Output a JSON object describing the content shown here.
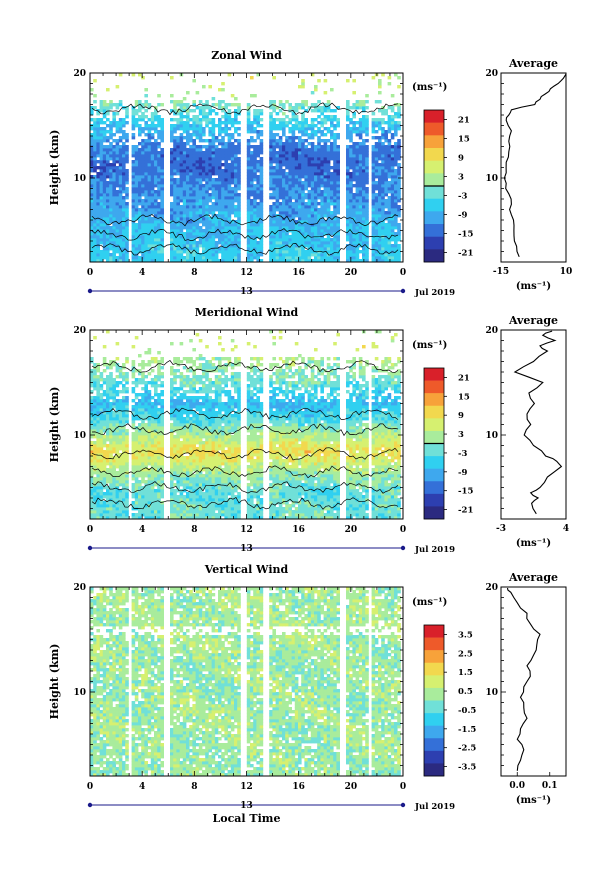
{
  "figure": {
    "date_label": "Jul 2019",
    "date_day": "13",
    "x_title": "Local Time",
    "colorbar_unit": "(ms⁻¹)"
  },
  "colors": {
    "accent_axis": "#1a1a8a",
    "colormap": [
      "#2b2a80",
      "#2d3fb0",
      "#3470d8",
      "#3ea8ee",
      "#30d0f0",
      "#70e0d8",
      "#a9ec9c",
      "#d6f070",
      "#f2d84e",
      "#f7a23a",
      "#ee5a2a",
      "#d9202a"
    ]
  },
  "chart_data": [
    {
      "type": "heatmap",
      "title": "Zonal Wind",
      "ylabel": "Height (km)",
      "xlabel": "",
      "x_ticks": [
        "0",
        "4",
        "8",
        "12",
        "16",
        "20",
        "0"
      ],
      "xlim": [
        0,
        24
      ],
      "y_ticks": [
        "20",
        "10"
      ],
      "ylim": [
        2,
        20
      ],
      "colorbar": {
        "unit": "(ms⁻¹)",
        "ticks": [
          "21",
          "15",
          "9",
          "3",
          "-3",
          "-9",
          "-15",
          "-21"
        ],
        "range": [
          -24,
          24
        ]
      },
      "gaps_hours": [
        3.1,
        5.9,
        11.9,
        13.6,
        19.6,
        21.6
      ],
      "profile_levels_km": [
        3,
        5,
        7,
        9,
        10,
        11,
        12,
        13,
        14,
        16,
        18,
        19.5
      ],
      "profile_values_ms": [
        -6,
        -8,
        -10,
        -12,
        -13,
        -14,
        -14,
        -13,
        -10,
        -4,
        2,
        6
      ],
      "average": {
        "title": "Average",
        "x_ticks": [
          "-15",
          "10"
        ],
        "xlim": [
          -15,
          10
        ],
        "xlabel": "(ms⁻¹)",
        "y_ticks": [
          "20",
          "10"
        ],
        "heights_km": [
          2.5,
          3.5,
          4.5,
          5.5,
          6.5,
          7.5,
          8.5,
          9.5,
          10.5,
          11.5,
          12.5,
          13.5,
          14.5,
          15.5,
          16,
          16.5,
          17,
          17.5,
          18,
          18.5,
          19,
          19.5,
          19.9
        ],
        "values_ms": [
          -8,
          -9,
          -10,
          -10,
          -11,
          -11,
          -12,
          -13,
          -13,
          -13,
          -12,
          -12,
          -11,
          -13,
          -12,
          -11,
          -2,
          0,
          2,
          4,
          7,
          9,
          10
        ]
      }
    },
    {
      "type": "heatmap",
      "title": "Meridional Wind",
      "ylabel": "Height (km)",
      "xlabel": "",
      "x_ticks": [
        "0",
        "4",
        "8",
        "12",
        "16",
        "20",
        "0"
      ],
      "xlim": [
        0,
        24
      ],
      "y_ticks": [
        "20",
        "10"
      ],
      "ylim": [
        2,
        20
      ],
      "colorbar": {
        "unit": "(ms⁻¹)",
        "ticks": [
          "21",
          "15",
          "9",
          "3",
          "-3",
          "-9",
          "-15",
          "-21"
        ],
        "range": [
          -24,
          24
        ]
      },
      "gaps_hours": [
        3.1,
        5.9,
        11.9,
        13.6,
        19.6,
        21.6
      ],
      "profile_levels_km": [
        3,
        4.5,
        6,
        7.5,
        8.5,
        10,
        11.5,
        13,
        15,
        17,
        18.5
      ],
      "profile_values_ms": [
        -2,
        -3,
        0,
        6,
        9,
        3,
        -4,
        -8,
        -2,
        2,
        5
      ],
      "average": {
        "title": "Average",
        "x_ticks": [
          "-3",
          "4"
        ],
        "xlim": [
          -3,
          4
        ],
        "xlabel": "(ms⁻¹)",
        "y_ticks": [
          "20",
          "10"
        ],
        "heights_km": [
          2.5,
          3.5,
          4,
          4.5,
          5,
          6,
          7,
          7.5,
          8,
          9,
          10,
          11,
          12,
          13,
          14,
          15,
          16,
          17,
          18,
          18.5,
          19,
          19.5,
          19.9
        ],
        "values_ms": [
          0.8,
          0.3,
          1.0,
          0.2,
          1.2,
          2.0,
          3.5,
          3.0,
          1.8,
          0.5,
          -0.5,
          0.2,
          -0.2,
          0.6,
          0.0,
          1.5,
          -1.5,
          0.5,
          2.0,
          1.2,
          2.8,
          1.5,
          2.5
        ]
      }
    },
    {
      "type": "heatmap",
      "title": "Vertical Wind",
      "ylabel": "Height (km)",
      "xlabel": "Local Time",
      "x_ticks": [
        "0",
        "4",
        "8",
        "12",
        "16",
        "20",
        "0"
      ],
      "xlim": [
        0,
        24
      ],
      "y_ticks": [
        "20",
        "10"
      ],
      "ylim": [
        2,
        20
      ],
      "colorbar": {
        "unit": "(ms⁻¹)",
        "ticks": [
          "3.5",
          "2.5",
          "1.5",
          "0.5",
          "-0.5",
          "-1.5",
          "-2.5",
          "-3.5"
        ],
        "range": [
          -4,
          4
        ]
      },
      "gaps_hours": [
        3.1,
        5.9,
        11.9,
        13.6,
        19.6,
        21.6
      ],
      "profile_levels_km": [
        3,
        8,
        12,
        16,
        19.5
      ],
      "profile_values_ms": [
        0.2,
        0.3,
        0.2,
        0.4,
        0.3
      ],
      "average": {
        "title": "Average",
        "x_ticks": [
          "0.0",
          "0.1"
        ],
        "xlim": [
          -0.05,
          0.15
        ],
        "xlabel": "(ms⁻¹)",
        "y_ticks": [
          "20",
          "10"
        ],
        "heights_km": [
          2.5,
          3.5,
          4.5,
          5.5,
          6.5,
          7.5,
          8.5,
          9.5,
          10.5,
          11.5,
          12.5,
          13.5,
          14.5,
          15.5,
          16.5,
          17.5,
          18.5,
          19.5,
          19.9
        ],
        "values_ms": [
          0.0,
          0.01,
          0.02,
          0.0,
          0.01,
          0.03,
          0.02,
          0.01,
          0.02,
          0.04,
          0.03,
          0.05,
          0.06,
          0.07,
          0.04,
          0.03,
          0.0,
          -0.02,
          -0.03
        ]
      }
    }
  ]
}
